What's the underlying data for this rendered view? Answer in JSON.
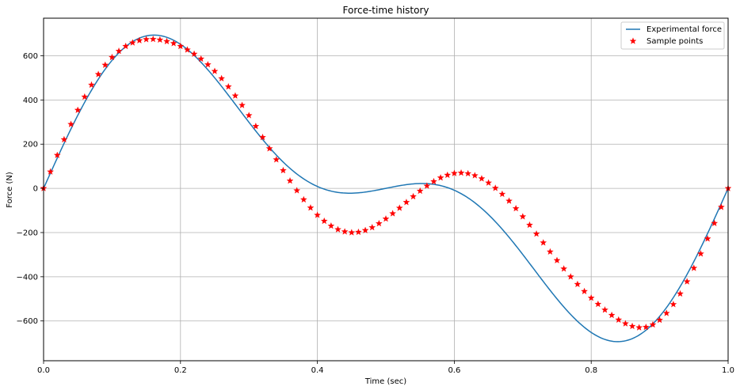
{
  "chart_data": {
    "type": "line",
    "title": "Force-time history",
    "xlabel": "Time (sec)",
    "ylabel": "Force (N)",
    "xlim": [
      0,
      1
    ],
    "ylim": [
      -780,
      770
    ],
    "xticks": [
      0,
      0.2,
      0.4,
      0.6,
      0.8,
      1
    ],
    "xtick_labels": [
      "0.0",
      "0.2",
      "0.4",
      "0.6",
      "0.8",
      "1.0"
    ],
    "yticks": [
      -600,
      -400,
      -200,
      0,
      200,
      400,
      600
    ],
    "ytick_labels": [
      "−600",
      "−400",
      "−200",
      "0",
      "200",
      "400",
      "600"
    ],
    "grid": true,
    "legend_position": "top-right",
    "series": [
      {
        "name": "Experimental force",
        "style": "line",
        "color": "#1f77b4",
        "function": "500*sin(2*pi*t) + 300*sin(4*pi*t)",
        "t_range": [
          0,
          1
        ]
      },
      {
        "name": "Sample points",
        "style": "marker",
        "marker": "star",
        "color": "#ff0000",
        "x": [
          0.0,
          0.01,
          0.02,
          0.03,
          0.04,
          0.05,
          0.06,
          0.07,
          0.08,
          0.09,
          0.1,
          0.11,
          0.12,
          0.13,
          0.14,
          0.15,
          0.16,
          0.17,
          0.18,
          0.19,
          0.2,
          0.21,
          0.22,
          0.23,
          0.24,
          0.25,
          0.26,
          0.27,
          0.28,
          0.29,
          0.3,
          0.31,
          0.32,
          0.33,
          0.34,
          0.35,
          0.36,
          0.37,
          0.38,
          0.39,
          0.4,
          0.41,
          0.42,
          0.43,
          0.44,
          0.45,
          0.46,
          0.47,
          0.48,
          0.49,
          0.5,
          0.51,
          0.52,
          0.53,
          0.54,
          0.55,
          0.56,
          0.57,
          0.58,
          0.59,
          0.6,
          0.61,
          0.62,
          0.63,
          0.64,
          0.65,
          0.66,
          0.67,
          0.68,
          0.69,
          0.7,
          0.71,
          0.72,
          0.73,
          0.74,
          0.75,
          0.76,
          0.77,
          0.78,
          0.79,
          0.8,
          0.81,
          0.82,
          0.83,
          0.84,
          0.85,
          0.86,
          0.87,
          0.88,
          0.89,
          0.9,
          0.91,
          0.92,
          0.93,
          0.94,
          0.95,
          0.96,
          0.97,
          0.98,
          0.99,
          1.0
        ],
        "y": [
          0,
          75,
          150,
          221,
          290,
          354,
          414,
          468,
          516,
          558,
          593,
          621,
          643,
          659,
          669,
          674,
          675,
          672,
          665,
          656,
          643,
          627,
          608,
          586,
          560,
          530,
          497,
          460,
          419,
          376,
          330,
          281,
          231,
          180,
          130,
          81,
          34,
          -10,
          -51,
          -88,
          -121,
          -148,
          -170,
          -186,
          -196,
          -200,
          -198,
          -190,
          -177,
          -159,
          -138,
          -114,
          -89,
          -63,
          -37,
          -12,
          11,
          31,
          48,
          60,
          68,
          70,
          67,
          58,
          44,
          25,
          1,
          -26,
          -57,
          -91,
          -128,
          -166,
          -206,
          -246,
          -287,
          -326,
          -364,
          -400,
          -434,
          -466,
          -496,
          -524,
          -550,
          -574,
          -595,
          -612,
          -624,
          -630,
          -628,
          -617,
          -596,
          -565,
          -525,
          -477,
          -422,
          -361,
          -296,
          -228,
          -158,
          -85,
          0
        ]
      }
    ]
  }
}
